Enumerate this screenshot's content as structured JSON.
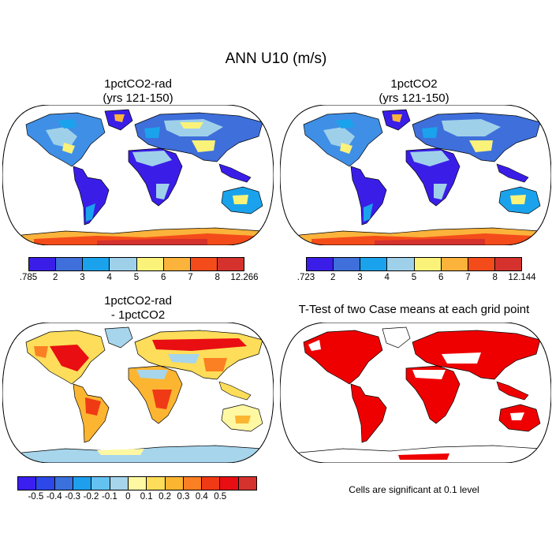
{
  "title": "ANN U10 (m/s)",
  "panels": [
    {
      "title_line1": "1pctCO2-rad",
      "title_line2": "(yrs 121-150)"
    },
    {
      "title_line1": "1pctCO2",
      "title_line2": "(yrs 121-150)"
    },
    {
      "title_line1": "1pctCO2-rad",
      "title_line2": "- 1pctCO2"
    },
    {
      "title_line1": "T-Test of two Case means at each grid point",
      "title_line2": ""
    }
  ],
  "colorbars": [
    {
      "colors": [
        "#3a1ee8",
        "#3e6fdb",
        "#1aa3ec",
        "#9fd0ea",
        "#fbf27a",
        "#fbb33b",
        "#f44b1a",
        "#d5322e"
      ],
      "labels": [
        ".785",
        "2",
        "3",
        "4",
        "5",
        "6",
        "7",
        "8",
        "12.266"
      ]
    },
    {
      "colors": [
        "#3a1ee8",
        "#3e6fdb",
        "#1aa3ec",
        "#9fd0ea",
        "#fbf27a",
        "#fbb33b",
        "#f44b1a",
        "#d5322e"
      ],
      "labels": [
        ".723",
        "2",
        "3",
        "4",
        "5",
        "6",
        "7",
        "8",
        "12.144"
      ]
    },
    {
      "colors": [
        "#3b1ff0",
        "#2d48e8",
        "#3a71dc",
        "#1e9fee",
        "#64c2f1",
        "#a6d5ec",
        "#fff8a3",
        "#fddd59",
        "#fcb531",
        "#fb7f23",
        "#f03a16",
        "#e90e12",
        "#d5322e"
      ],
      "labels": [
        "-0.5",
        "-0.4",
        "-0.3",
        "-0.2",
        "-0.1",
        "0",
        "0.1",
        "0.2",
        "0.3",
        "0.4",
        "0.5"
      ]
    }
  ],
  "significance_note": "Cells are significant at 0.1 level",
  "map_colors": {
    "ocean": "#ffffff",
    "coast": "#000000",
    "significant": "#ee0000"
  }
}
